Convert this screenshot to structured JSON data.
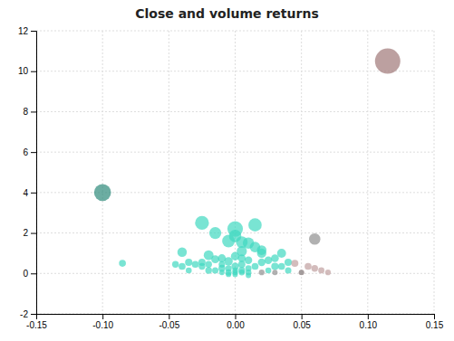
{
  "chart_data": {
    "type": "scatter",
    "title": "Close and volume returns",
    "x": [
      0.115,
      -0.1,
      0.06,
      -0.025,
      0,
      0.015,
      -0.015,
      -0.005,
      0.01,
      -0.02,
      0.005,
      -0.005,
      0.02,
      0.015,
      -0.015,
      0,
      -0.01,
      0.005,
      -0.005,
      0.01,
      -0.02,
      0,
      0.005,
      -0.01,
      0.02,
      0.03,
      -0.03,
      0.005,
      -0.005,
      0.01,
      0.015,
      -0.015,
      0.025,
      0.03,
      -0.025,
      0.005,
      0,
      -0.035,
      0.035,
      0.04,
      -0.04,
      0.04,
      -0.04,
      -0.045,
      0.06,
      0.065,
      0.055,
      0.07,
      0.05,
      -0.085,
      0,
      0.01,
      -0.005,
      0.02,
      0.03,
      0.05,
      0,
      -0.01,
      0.005,
      0.02,
      -0.02,
      0.01,
      -0.01,
      0.025,
      -0.025,
      0.035,
      -0.035,
      0.045,
      0
    ],
    "values": [
      10.5,
      4.0,
      1.7,
      2.5,
      2.2,
      2.4,
      2.0,
      1.6,
      1.5,
      0.9,
      1.1,
      0.6,
      1.0,
      1.3,
      0.7,
      0.35,
      0.25,
      0.15,
      0.05,
      0.05,
      0.15,
      0.05,
      0.45,
      0.75,
      0.55,
      0.35,
      0.45,
      0.05,
      0.25,
      0.65,
      0.35,
      0.15,
      0.15,
      0.75,
      0.55,
      1.55,
      0.85,
      0.55,
      0.35,
      0.15,
      0.35,
      0.55,
      1.05,
      0.45,
      0.25,
      0.15,
      0.35,
      0.05,
      0.05,
      0.5,
      -0.05,
      -0.1,
      -0.05,
      0.05,
      0.05,
      0.05,
      0.15,
      0.45,
      0.75,
      1.15,
      0.45,
      0.25,
      0.05,
      0.65,
      0.35,
      1.0,
      0.15,
      0.5,
      1.85
    ],
    "sizes": [
      400,
      180,
      80,
      120,
      150,
      110,
      90,
      100,
      80,
      60,
      65,
      45,
      55,
      70,
      40,
      35,
      30,
      28,
      25,
      22,
      28,
      20,
      32,
      40,
      36,
      34,
      30,
      22,
      26,
      36,
      30,
      25,
      22,
      38,
      32,
      85,
      45,
      34,
      30,
      25,
      30,
      34,
      56,
      28,
      28,
      24,
      30,
      20,
      18,
      30,
      18,
      18,
      18,
      20,
      18,
      17,
      20,
      26,
      38,
      58,
      28,
      24,
      18,
      36,
      28,
      50,
      22,
      32,
      95
    ],
    "colors": [
      "#a07878",
      "#2d8a7a",
      "#909090",
      "#40d8c0",
      "#40d8c0",
      "#40d8c0",
      "#40d8c0",
      "#40d8c0",
      "#40d8c0",
      "#40d8c0",
      "#40d8c0",
      "#40d8c0",
      "#40d8c0",
      "#40d8c0",
      "#40d8c0",
      "#40d8c0",
      "#40d8c0",
      "#40d8c0",
      "#40d8c0",
      "#40d8c0",
      "#40d8c0",
      "#40d8c0",
      "#40d8c0",
      "#40d8c0",
      "#40d8c0",
      "#40d8c0",
      "#40d8c0",
      "#40d8c0",
      "#40d8c0",
      "#40d8c0",
      "#40d8c0",
      "#40d8c0",
      "#40d8c0",
      "#40d8c0",
      "#40d8c0",
      "#40d8c0",
      "#40d8c0",
      "#40d8c0",
      "#40d8c0",
      "#40d8c0",
      "#40d8c0",
      "#40d8c0",
      "#40d8c0",
      "#40d8c0",
      "#c0a0a0",
      "#c0a0a0",
      "#c0a0a0",
      "#c0a0a0",
      "#c0a0a0",
      "#40d8c0",
      "#40d8c0",
      "#40d8c0",
      "#40d8c0",
      "#909090",
      "#909090",
      "#909090",
      "#40d8c0",
      "#40d8c0",
      "#40d8c0",
      "#40d8c0",
      "#40d8c0",
      "#40d8c0",
      "#40d8c0",
      "#40d8c0",
      "#40d8c0",
      "#40d8c0",
      "#40d8c0",
      "#c0a0a0",
      "#40d8c0"
    ],
    "xlim": [
      -0.15,
      0.15
    ],
    "ylim": [
      -2,
      12
    ],
    "xticks": [
      {
        "value": -0.15,
        "label": "-0.15"
      },
      {
        "value": -0.1,
        "label": "-0.10"
      },
      {
        "value": -0.05,
        "label": "-0.05"
      },
      {
        "value": 0,
        "label": "0.00"
      },
      {
        "value": 0.05,
        "label": "0.05"
      },
      {
        "value": 0.1,
        "label": "0.10"
      },
      {
        "value": 0.15,
        "label": "0.15"
      }
    ],
    "yticks": [
      -2,
      0,
      2,
      4,
      6,
      8,
      10,
      12
    ],
    "grid": true
  }
}
